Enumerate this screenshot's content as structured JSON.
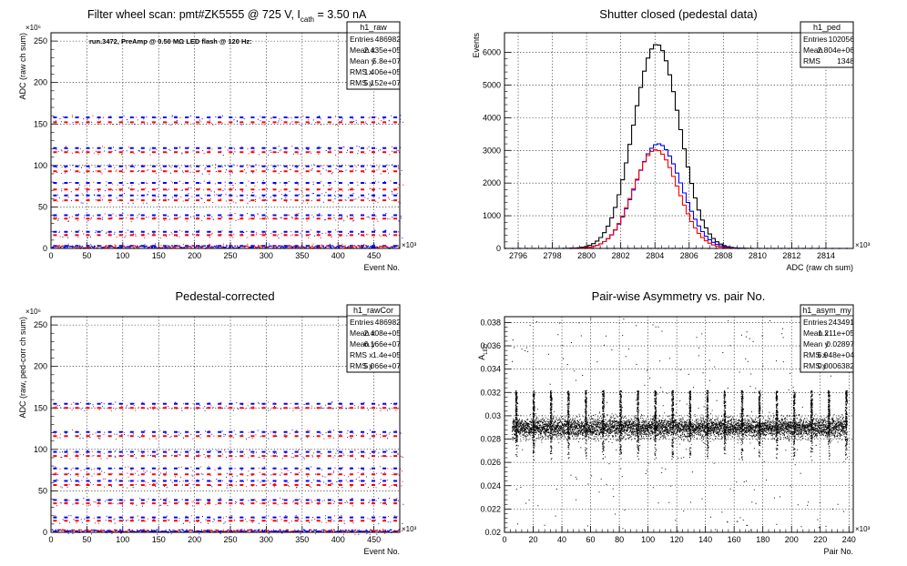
{
  "colors": {
    "black": "#000000",
    "red": "#ff0000",
    "blue": "#0000ff"
  },
  "panels": {
    "raw": {
      "title_main": "Filter wheel scan: pmt#ZK5555 @   725 V, I",
      "title_sub": "cath",
      "title_tail": " = 3.50 nA",
      "annotation": "run.3472, PreAmp @ 0.50 MΩ LED flash @  120 Hz:",
      "stats": {
        "name": "h1_raw",
        "rows": [
          [
            "Entries",
            "486982"
          ],
          [
            "Mean x",
            "2.435e+05"
          ],
          [
            "Mean y",
            "5.8e+07"
          ],
          [
            "RMS x",
            "1.406e+05"
          ],
          [
            "RMS y",
            "5.152e+07"
          ]
        ]
      }
    },
    "ped": {
      "title": "Shutter closed (pedestal data)",
      "stats": {
        "name": "h1_ped",
        "rows": [
          [
            "Entries",
            "102056"
          ],
          [
            "Mean",
            "2.804e+06"
          ],
          [
            "RMS",
            "1348"
          ]
        ]
      }
    },
    "cor": {
      "title": "Pedestal-corrected",
      "stats": {
        "name": "h1_rawCor",
        "rows": [
          [
            "Entries",
            "486982"
          ],
          [
            "Mean x",
            "2.408e+05"
          ],
          [
            "Mean y",
            "6.166e+07"
          ],
          [
            "RMS x",
            "1.4e+05"
          ],
          [
            "RMS y",
            "5.066e+07"
          ]
        ]
      }
    },
    "asym": {
      "title": "Pair-wise Asymmetry vs. pair No.",
      "stats": {
        "name": "h1_asym_my",
        "rows": [
          [
            "Entries",
            "243491"
          ],
          [
            "Mean x",
            "1.211e+05"
          ],
          [
            "Mean y",
            "0.02897"
          ],
          [
            "RMS x",
            "6.948e+04"
          ],
          [
            "RMS y",
            "0.0006382"
          ]
        ]
      }
    }
  },
  "chart_data": [
    {
      "id": "raw",
      "type": "scatter",
      "title": "Filter wheel scan: pmt#ZK5555 @   725 V, I_cath = 3.50 nA",
      "xlabel": "Event No.",
      "x_multiplier": "×10³",
      "ylabel": "ADC (raw ch sum)",
      "y_multiplier": "×10⁶",
      "xlim": [
        0,
        486
      ],
      "ylim": [
        0,
        260
      ],
      "xticks": [
        0,
        50,
        100,
        150,
        200,
        250,
        300,
        350,
        400,
        450
      ],
      "yticks": [
        0,
        50,
        100,
        150,
        200,
        250
      ],
      "grid": true,
      "periodic_pattern": {
        "period_x": 15.3,
        "levels": [
          {
            "y": 158,
            "color": "blue"
          },
          {
            "y": 152,
            "color": "red"
          },
          {
            "y": 121,
            "color": "blue"
          },
          {
            "y": 116,
            "color": "red"
          },
          {
            "y": 99,
            "color": "blue"
          },
          {
            "y": 93,
            "color": "red"
          },
          {
            "y": 79,
            "color": "blue"
          },
          {
            "y": 71,
            "color": "red"
          },
          {
            "y": 64,
            "color": "blue"
          },
          {
            "y": 58,
            "color": "red"
          },
          {
            "y": 40,
            "color": "blue"
          },
          {
            "y": 36,
            "color": "red"
          },
          {
            "y": 20,
            "color": "blue"
          },
          {
            "y": 16,
            "color": "red"
          },
          {
            "y": 3,
            "color": "blue"
          }
        ]
      }
    },
    {
      "id": "ped",
      "type": "histogram",
      "title": "Shutter closed (pedestal data)",
      "xlabel": "ADC (raw ch sum)",
      "x_multiplier": "×10³",
      "ylabel": "Events",
      "xlim": [
        2795.2,
        2815.6
      ],
      "ylim": [
        0,
        6600
      ],
      "xticks": [
        2796,
        2798,
        2800,
        2802,
        2804,
        2806,
        2808,
        2810,
        2812,
        2814
      ],
      "yticks": [
        0,
        1000,
        2000,
        3000,
        4000,
        5000,
        6000
      ],
      "grid": true,
      "series": [
        {
          "color": "black",
          "mean": 2804.1,
          "sigma": 1.35,
          "peak": 6250
        },
        {
          "color": "blue",
          "mean": 2804.2,
          "sigma": 1.35,
          "peak": 3200
        },
        {
          "color": "red",
          "mean": 2804.05,
          "sigma": 1.3,
          "peak": 3020
        }
      ]
    },
    {
      "id": "cor",
      "type": "scatter",
      "title": "Pedestal-corrected",
      "xlabel": "Event No.",
      "x_multiplier": "×10³",
      "ylabel": "ADC (raw, ped-corr ch sum)",
      "y_multiplier": "×10⁶",
      "xlim": [
        0,
        486
      ],
      "ylim": [
        0,
        260
      ],
      "xticks": [
        0,
        50,
        100,
        150,
        200,
        250,
        300,
        350,
        400,
        450
      ],
      "yticks": [
        0,
        50,
        100,
        150,
        200,
        250
      ],
      "grid": true,
      "periodic_pattern": {
        "period_x": 15.3,
        "levels": [
          {
            "y": 155,
            "color": "blue"
          },
          {
            "y": 150,
            "color": "red"
          },
          {
            "y": 121,
            "color": "blue"
          },
          {
            "y": 116,
            "color": "red"
          },
          {
            "y": 97,
            "color": "blue"
          },
          {
            "y": 92,
            "color": "red"
          },
          {
            "y": 77,
            "color": "blue"
          },
          {
            "y": 70,
            "color": "red"
          },
          {
            "y": 62,
            "color": "blue"
          },
          {
            "y": 57,
            "color": "red"
          },
          {
            "y": 39,
            "color": "blue"
          },
          {
            "y": 35,
            "color": "red"
          },
          {
            "y": 18,
            "color": "blue"
          },
          {
            "y": 14,
            "color": "red"
          },
          {
            "y": 1,
            "color": "blue"
          }
        ]
      }
    },
    {
      "id": "asym",
      "type": "scatter",
      "title": "Pair-wise Asymmetry vs. pair No.",
      "xlabel": "Pair No.",
      "x_multiplier": "×10³",
      "ylabel": "A_LED",
      "xlim": [
        0,
        243
      ],
      "ylim": [
        0.02,
        0.0385
      ],
      "xticks": [
        0,
        20,
        40,
        60,
        80,
        100,
        120,
        140,
        160,
        180,
        200,
        220,
        240
      ],
      "yticks": [
        0.02,
        0.022,
        0.024,
        0.026,
        0.028,
        0.03,
        0.032,
        0.034,
        0.036,
        0.038
      ],
      "grid": true,
      "band": {
        "center": 0.029,
        "halfwidth": 0.0007
      },
      "spikes": {
        "period_x": 12.1,
        "first_x": 8,
        "count": 20,
        "low": 0.0262,
        "high": 0.0322
      }
    }
  ]
}
